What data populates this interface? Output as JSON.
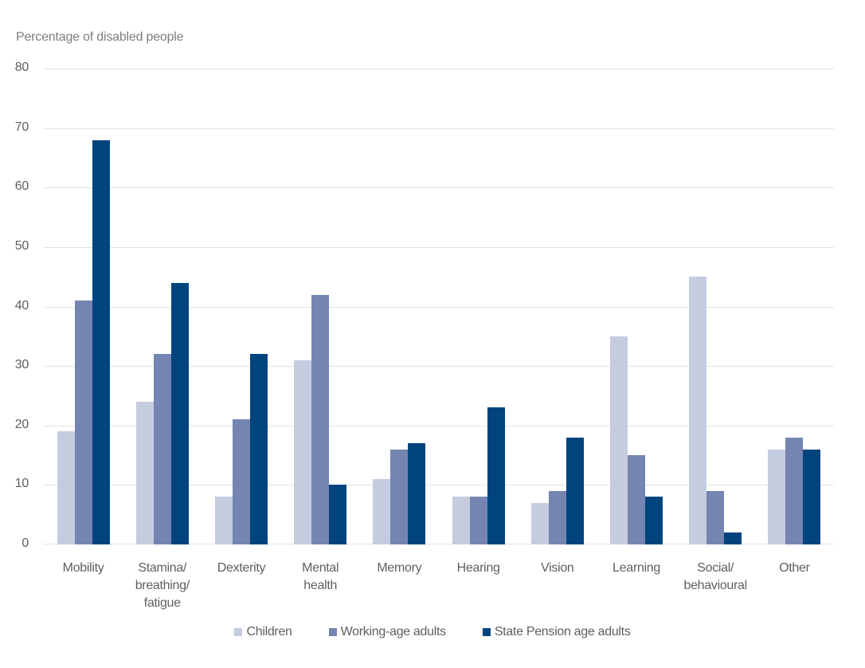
{
  "chart_data": {
    "type": "bar",
    "title": "Percentage of disabled people",
    "xlabel": "",
    "ylabel": "Percentage of disabled people",
    "categories": [
      "Mobility",
      "Stamina/breathing/fatigue",
      "Dexterity",
      "Mental health",
      "Memory",
      "Hearing",
      "Vision",
      "Learning",
      "Social/behavioural",
      "Other"
    ],
    "category_label_lines": [
      [
        "Mobility"
      ],
      [
        "Stamina/",
        "breathing/",
        "fatigue"
      ],
      [
        "Dexterity"
      ],
      [
        "Mental",
        "health"
      ],
      [
        "Memory"
      ],
      [
        "Hearing"
      ],
      [
        "Vision"
      ],
      [
        "Learning"
      ],
      [
        "Social/",
        "behavioural"
      ],
      [
        "Other"
      ]
    ],
    "series": [
      {
        "name": "Children",
        "color": "#c6cce0",
        "values": [
          19,
          24,
          8,
          31,
          11,
          8,
          7,
          35,
          45,
          16
        ]
      },
      {
        "name": "Working-age adults",
        "color": "#7585b1",
        "values": [
          41,
          32,
          21,
          42,
          16,
          8,
          9,
          15,
          9,
          18
        ]
      },
      {
        "name": "State Pension age adults",
        "color": "#00447e",
        "values": [
          68,
          44,
          32,
          10,
          17,
          23,
          18,
          8,
          2,
          16
        ]
      }
    ],
    "ylim": [
      0,
      80
    ],
    "yticks": [
      0,
      10,
      20,
      30,
      40,
      50,
      60,
      70,
      80
    ],
    "grid": "horizontal",
    "legend_position": "bottom"
  },
  "style": {
    "gridline_color": "#e3e3e3",
    "axis_text_color": "#5f5f5f",
    "title_color": "#7d7d7d",
    "background_color": "#ffffff"
  }
}
